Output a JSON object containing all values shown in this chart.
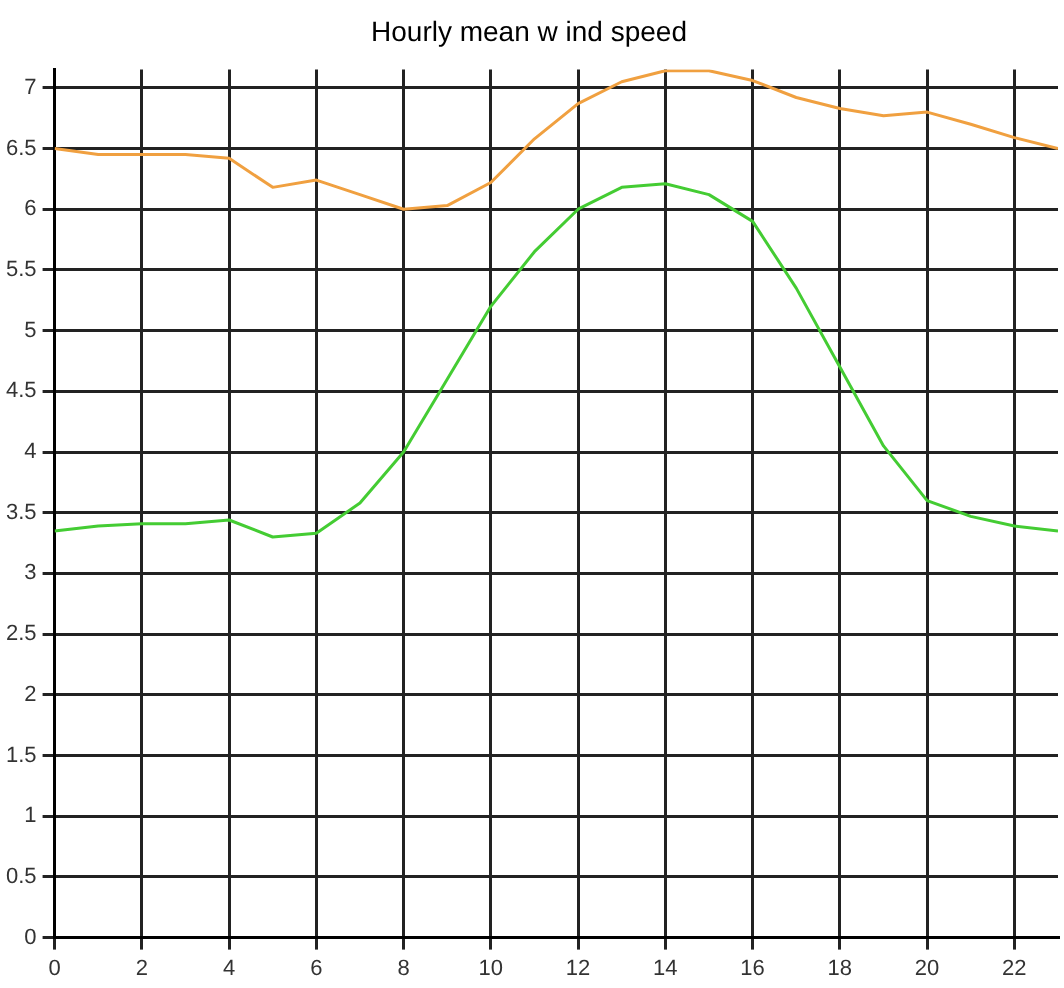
{
  "chart_data": {
    "type": "line",
    "title": "Hourly mean w ind speed",
    "x": [
      0,
      1,
      2,
      3,
      4,
      5,
      6,
      7,
      8,
      9,
      10,
      11,
      12,
      13,
      14,
      15,
      16,
      17,
      18,
      19,
      20,
      21,
      22,
      23
    ],
    "series": [
      {
        "color": "#f0a040",
        "values": [
          6.5,
          6.45,
          6.45,
          6.45,
          6.42,
          6.18,
          6.24,
          6.12,
          6.0,
          6.03,
          6.22,
          6.58,
          6.87,
          7.05,
          7.14,
          7.14,
          7.06,
          6.92,
          6.83,
          6.77,
          6.8,
          6.7,
          6.59,
          6.5
        ]
      },
      {
        "color": "#44cc33",
        "values": [
          3.35,
          3.39,
          3.41,
          3.41,
          3.44,
          3.3,
          3.33,
          3.58,
          4.0,
          4.6,
          5.2,
          5.65,
          6.0,
          6.18,
          6.21,
          6.12,
          5.9,
          5.35,
          4.7,
          4.05,
          3.6,
          3.47,
          3.39,
          3.35
        ]
      }
    ],
    "xlim": [
      0,
      23
    ],
    "xticks": [
      0,
      2,
      4,
      6,
      8,
      10,
      12,
      14,
      16,
      18,
      20,
      22
    ],
    "ylim": [
      0,
      7.15
    ],
    "yticks": [
      0,
      0.5,
      1,
      1.5,
      2,
      2.5,
      3,
      3.5,
      4,
      4.5,
      5,
      5.5,
      6,
      6.5,
      7
    ],
    "grid": true,
    "legend": false,
    "marker": "none",
    "line_style": "solid"
  }
}
